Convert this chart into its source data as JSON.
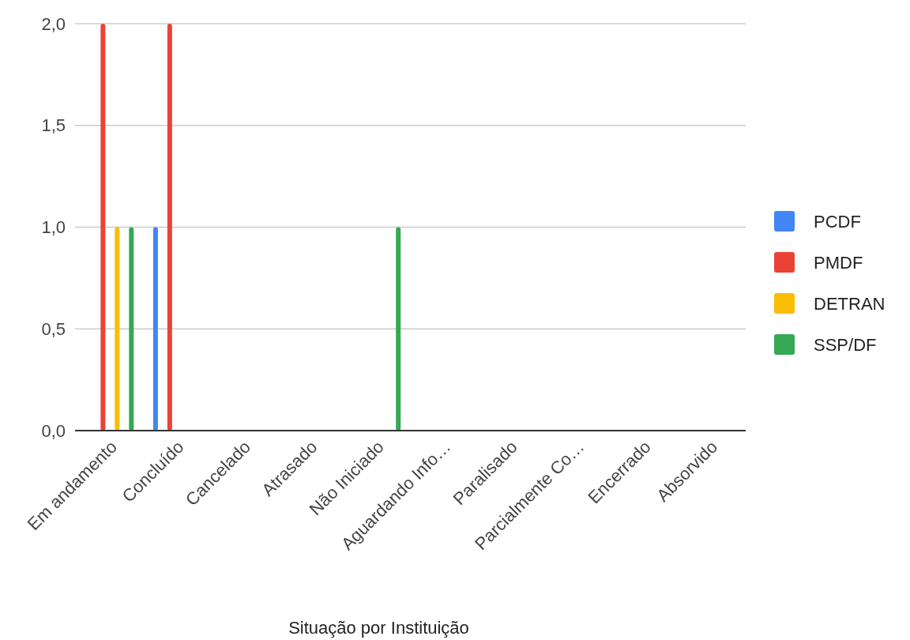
{
  "chart_data": {
    "type": "bar",
    "xlabel": "Situação por Instituição",
    "categories": [
      "Em andamento",
      "Concluído",
      "Cancelado",
      "Atrasado",
      "Não Iniciado",
      "Aguardando Info…",
      "Paralisado",
      "Parcialmente Co…",
      "Encerrado",
      "Absorvido"
    ],
    "series": [
      {
        "name": "PCDF",
        "color": "#4285f4",
        "values": [
          0,
          1,
          0,
          0,
          0,
          0,
          0,
          0,
          0,
          0
        ]
      },
      {
        "name": "PMDF",
        "color": "#ea4335",
        "values": [
          2,
          2,
          0,
          0,
          0,
          0,
          0,
          0,
          0,
          0
        ]
      },
      {
        "name": "DETRAN",
        "color": "#fbbc04",
        "values": [
          1,
          0,
          0,
          0,
          0,
          0,
          0,
          0,
          0,
          0
        ]
      },
      {
        "name": "SSP/DF",
        "color": "#34a853",
        "values": [
          1,
          0,
          0,
          0,
          1,
          0,
          0,
          0,
          0,
          0
        ]
      }
    ],
    "ylim": [
      0,
      2
    ],
    "yticks": [
      {
        "value": 0,
        "label": "0,0"
      },
      {
        "value": 0.5,
        "label": "0,5"
      },
      {
        "value": 1,
        "label": "1,0"
      },
      {
        "value": 1.5,
        "label": "1,5"
      },
      {
        "value": 2,
        "label": "2,0"
      }
    ],
    "grid": "y",
    "legend": "right"
  }
}
